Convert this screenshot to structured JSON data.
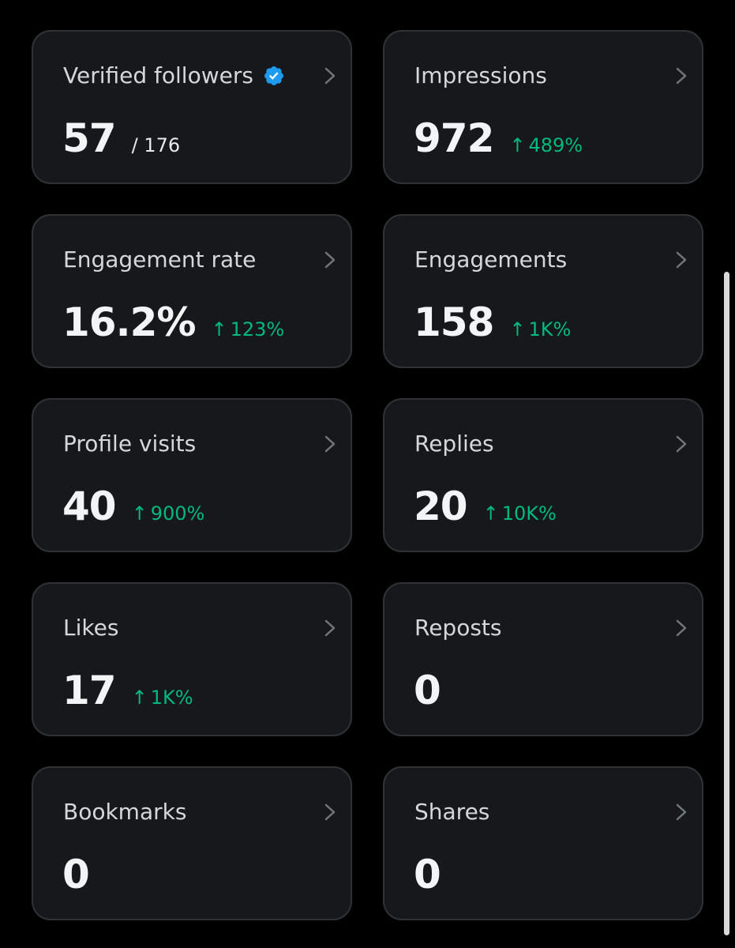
{
  "colors": {
    "background": "#000000",
    "card": "#16181c",
    "card_border": "#2f3336",
    "positive": "#00ba7c",
    "verified": "#1d9bf0"
  },
  "cards": [
    {
      "label": "Verified followers",
      "value": "57",
      "total": "/ 176",
      "icon": "verified-badge-icon"
    },
    {
      "label": "Impressions",
      "value": "972",
      "change": "489%",
      "arrow": "↑"
    },
    {
      "label": "Engagement rate",
      "value": "16.2%",
      "change": "123%",
      "arrow": "↑"
    },
    {
      "label": "Engagements",
      "value": "158",
      "change": "1K%",
      "arrow": "↑"
    },
    {
      "label": "Profile visits",
      "value": "40",
      "change": "900%",
      "arrow": "↑"
    },
    {
      "label": "Replies",
      "value": "20",
      "change": "10K%",
      "arrow": "↑"
    },
    {
      "label": "Likes",
      "value": "17",
      "change": "1K%",
      "arrow": "↑"
    },
    {
      "label": "Reposts",
      "value": "0"
    },
    {
      "label": "Bookmarks",
      "value": "0"
    },
    {
      "label": "Shares",
      "value": "0"
    }
  ]
}
